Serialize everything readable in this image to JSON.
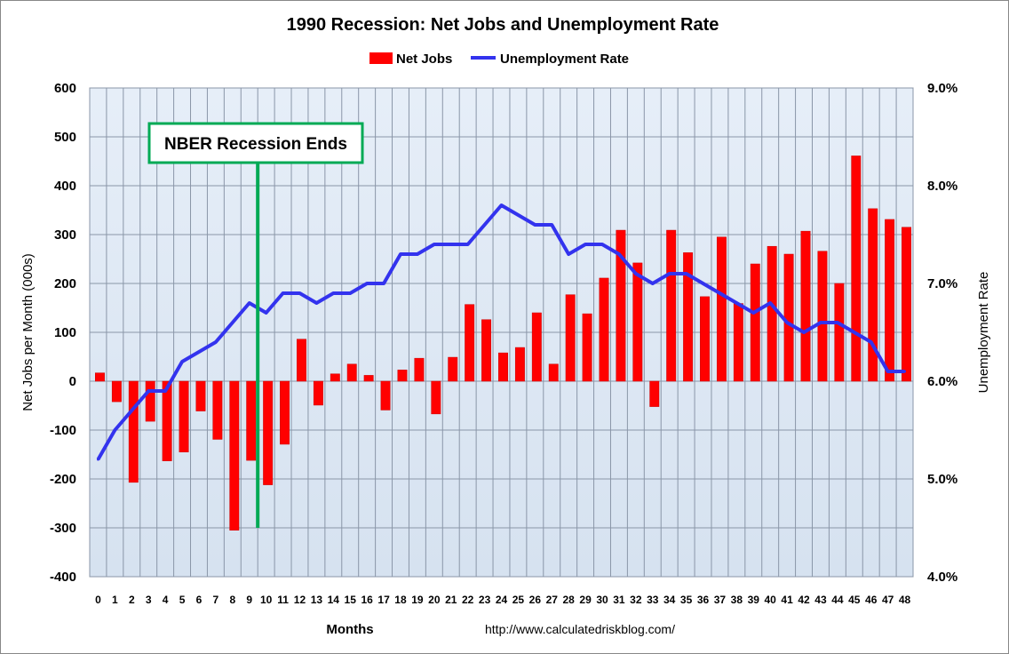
{
  "chart_data": {
    "type": "bar",
    "title": "1990 Recession: Net Jobs and Unemployment Rate",
    "xlabel": "Months",
    "ylabel": "Net Jobs per Month (000s)",
    "y2label": "Unemployment Rate",
    "source": "http://www.calculatedriskblog.com/",
    "legend_position": "top-center",
    "grid": true,
    "ylim": [
      -400,
      600
    ],
    "yticks": [
      600,
      500,
      400,
      300,
      200,
      100,
      0,
      -100,
      -200,
      -300,
      -400
    ],
    "y2lim": [
      4.0,
      9.0
    ],
    "y2ticks": [
      "9.0%",
      "8.0%",
      "7.0%",
      "6.0%",
      "5.0%",
      "4.0%"
    ],
    "x": [
      0,
      1,
      2,
      3,
      4,
      5,
      6,
      7,
      8,
      9,
      10,
      11,
      12,
      13,
      14,
      15,
      16,
      17,
      18,
      19,
      20,
      21,
      22,
      23,
      24,
      25,
      26,
      27,
      28,
      29,
      30,
      31,
      32,
      33,
      34,
      35,
      36,
      37,
      38,
      39,
      40,
      41,
      42,
      43,
      44,
      45,
      46,
      47,
      48
    ],
    "series": [
      {
        "name": "Net Jobs",
        "type": "bar",
        "axis": "left",
        "color": "#ff0000",
        "values": [
          17,
          -42,
          -207,
          -82,
          -163,
          -145,
          -61,
          -119,
          -305,
          -162,
          -212,
          -129,
          86,
          -49,
          15,
          35,
          12,
          -59,
          23,
          47,
          -67,
          49,
          157,
          126,
          58,
          69,
          140,
          35,
          177,
          138,
          211,
          309,
          242,
          -52,
          309,
          263,
          173,
          295,
          159,
          240,
          276,
          260,
          307,
          266,
          200,
          461,
          353,
          331,
          315
        ]
      },
      {
        "name": "Unemployment Rate",
        "type": "line",
        "axis": "right",
        "color": "#3333ee",
        "values": [
          5.2,
          5.5,
          5.7,
          5.9,
          5.9,
          6.2,
          6.3,
          6.4,
          6.6,
          6.8,
          6.7,
          6.9,
          6.9,
          6.8,
          6.9,
          6.9,
          7.0,
          7.0,
          7.3,
          7.3,
          7.4,
          7.4,
          7.4,
          7.6,
          7.8,
          7.7,
          7.6,
          7.6,
          7.3,
          7.4,
          7.4,
          7.3,
          7.1,
          7.0,
          7.1,
          7.1,
          7.0,
          6.9,
          6.8,
          6.7,
          6.8,
          6.6,
          6.5,
          6.6,
          6.6,
          6.5,
          6.4,
          6.1,
          6.1
        ]
      }
    ],
    "annotation": {
      "text": "NBER Recession Ends",
      "x": 9.5,
      "line_color": "#00aa55"
    }
  }
}
